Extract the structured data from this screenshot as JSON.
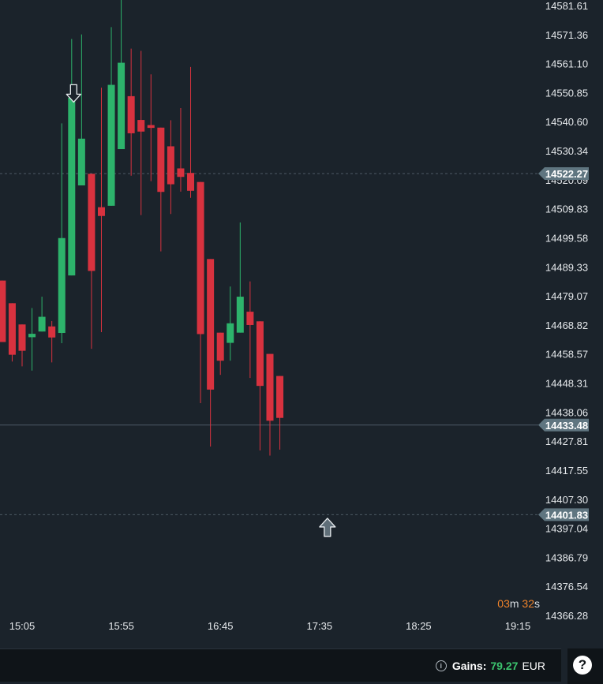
{
  "chart_data": {
    "type": "candlestick",
    "y_ticks": [
      "14581.61",
      "14571.36",
      "14561.10",
      "14550.85",
      "14540.60",
      "14530.34",
      "14520.09",
      "14509.83",
      "14499.58",
      "14489.33",
      "14479.07",
      "14468.82",
      "14458.57",
      "14448.31",
      "14438.06",
      "14427.81",
      "14417.55",
      "14407.30",
      "14397.04",
      "14386.79",
      "14376.54",
      "14366.28"
    ],
    "x_ticks": [
      "15:05",
      "15:55",
      "16:45",
      "17:35",
      "18:25",
      "19:15"
    ],
    "x_ticks_minutes": [
      905,
      955,
      1005,
      1055,
      1105,
      1155
    ],
    "ylim": [
      14366.28,
      14581.61
    ],
    "price_lines": [
      {
        "label": "14522.27",
        "value": 14522.27,
        "style": "dashed"
      },
      {
        "label": "14433.48",
        "value": 14433.48,
        "style": "solid"
      },
      {
        "label": "14401.83",
        "value": 14401.83,
        "style": "dashed"
      }
    ],
    "markers": [
      {
        "type": "down-arrow",
        "time": 931,
        "value": 14550.3
      },
      {
        "type": "up-arrow",
        "time": 1059,
        "value": 14397.5
      }
    ],
    "candles": [
      {
        "t": 895,
        "o": 14484.5,
        "h": 14484.5,
        "l": 14462.8,
        "c": 14462.8
      },
      {
        "t": 900,
        "o": 14476.5,
        "h": 14476.5,
        "l": 14455.9,
        "c": 14458.3
      },
      {
        "t": 905,
        "o": 14469.0,
        "h": 14469.0,
        "l": 14454.2,
        "c": 14459.7
      },
      {
        "t": 910,
        "o": 14464.5,
        "h": 14474.8,
        "l": 14452.7,
        "c": 14465.7
      },
      {
        "t": 915,
        "o": 14466.5,
        "h": 14478.8,
        "l": 14466.5,
        "c": 14471.7
      },
      {
        "t": 920,
        "o": 14468.3,
        "h": 14470.2,
        "l": 14455.6,
        "c": 14464.4
      },
      {
        "t": 925,
        "o": 14466.0,
        "h": 14540.0,
        "l": 14462.4,
        "c": 14499.5
      },
      {
        "t": 930,
        "o": 14486.3,
        "h": 14569.8,
        "l": 14486.3,
        "c": 14549.1
      },
      {
        "t": 935,
        "o": 14518.1,
        "h": 14571.4,
        "l": 14518.1,
        "c": 14534.6
      },
      {
        "t": 940,
        "o": 14522.2,
        "h": 14522.2,
        "l": 14460.4,
        "c": 14487.9
      },
      {
        "t": 945,
        "o": 14510.4,
        "h": 14552.6,
        "l": 14466.3,
        "c": 14507.3
      },
      {
        "t": 950,
        "o": 14510.9,
        "h": 14574.0,
        "l": 14510.9,
        "c": 14553.6
      },
      {
        "t": 955,
        "o": 14530.9,
        "h": 14584.2,
        "l": 14530.9,
        "c": 14561.4
      },
      {
        "t": 960,
        "o": 14549.6,
        "h": 14566.4,
        "l": 14521.5,
        "c": 14536.5
      },
      {
        "t": 965,
        "o": 14541.2,
        "h": 14565.6,
        "l": 14507.6,
        "c": 14537.1
      },
      {
        "t": 970,
        "o": 14539.4,
        "h": 14557.3,
        "l": 14519.6,
        "c": 14538.4
      },
      {
        "t": 975,
        "o": 14538.5,
        "h": 14538.5,
        "l": 14494.8,
        "c": 14515.8
      },
      {
        "t": 980,
        "o": 14531.9,
        "h": 14541.1,
        "l": 14508.0,
        "c": 14518.5
      },
      {
        "t": 985,
        "o": 14524.1,
        "h": 14545.4,
        "l": 14515.9,
        "c": 14521.1
      },
      {
        "t": 990,
        "o": 14522.5,
        "h": 14559.9,
        "l": 14513.7,
        "c": 14516.2
      },
      {
        "t": 995,
        "o": 14519.3,
        "h": 14519.3,
        "l": 14441.2,
        "c": 14465.6
      },
      {
        "t": 1000,
        "o": 14492.1,
        "h": 14492.1,
        "l": 14425.9,
        "c": 14446.0
      },
      {
        "t": 1005,
        "o": 14466.1,
        "h": 14466.1,
        "l": 14451.2,
        "c": 14456.2
      },
      {
        "t": 1010,
        "o": 14462.5,
        "h": 14482.4,
        "l": 14456.2,
        "c": 14469.4
      },
      {
        "t": 1015,
        "o": 14466.1,
        "h": 14505.0,
        "l": 14466.1,
        "c": 14478.8
      },
      {
        "t": 1020,
        "o": 14473.5,
        "h": 14484.2,
        "l": 14450.1,
        "c": 14468.8
      },
      {
        "t": 1025,
        "o": 14470.1,
        "h": 14470.1,
        "l": 14424.5,
        "c": 14447.3
      },
      {
        "t": 1030,
        "o": 14458.6,
        "h": 14458.6,
        "l": 14422.7,
        "c": 14435.0
      },
      {
        "t": 1035,
        "o": 14450.8,
        "h": 14450.8,
        "l": 14424.8,
        "c": 14436.0
      }
    ]
  },
  "timer": {
    "minutes": "03",
    "m_unit": "m",
    "seconds": "32",
    "s_unit": "s"
  },
  "footer": {
    "gains_label": "Gains:",
    "gains_value": "79.27",
    "currency": "EUR",
    "info_icon": "i",
    "help_icon": "?"
  },
  "colors": {
    "up": "#2db36b",
    "down": "#d8323f",
    "wick_up": "#2db36b",
    "wick_down": "#d8323f",
    "badge": "#5f7580",
    "grid_line": "#4d5a64",
    "background": "#1b232b"
  }
}
